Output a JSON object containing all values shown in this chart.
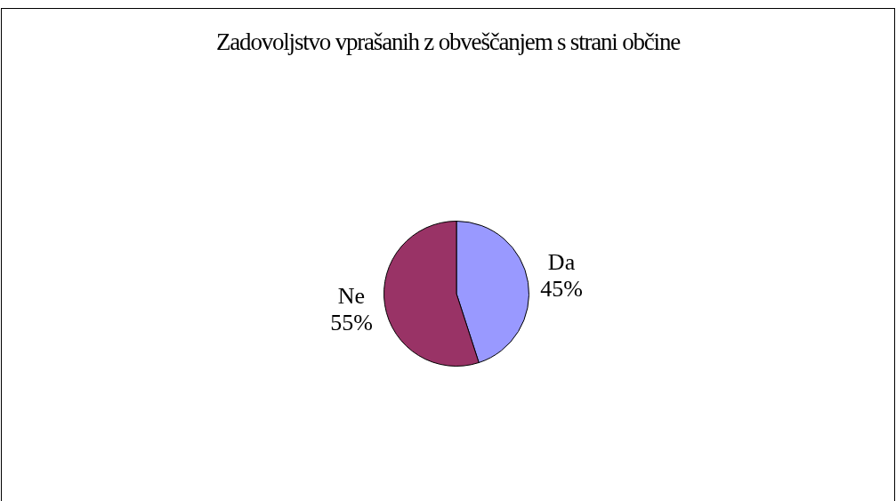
{
  "chart_data": {
    "type": "pie",
    "title": "Zadovoljstvo vprašanih z obveščanjem s strani občine",
    "categories": [
      "Da",
      "Ne"
    ],
    "values": [
      45,
      55
    ],
    "colors": [
      "#9999ff",
      "#993366"
    ],
    "value_labels": [
      "45%",
      "55%"
    ]
  }
}
